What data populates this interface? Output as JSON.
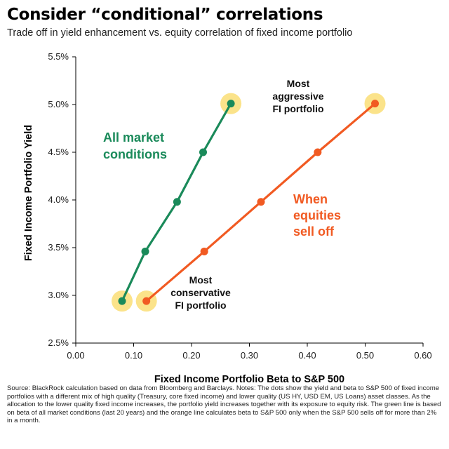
{
  "title": "Consider “conditional” correlations",
  "subtitle": "Trade off in yield enhancement vs. equity correlation of fixed income portfolio",
  "chart_data": {
    "type": "line",
    "title": "Consider “conditional” correlations",
    "subtitle": "Trade off in yield enhancement vs. equity correlation of fixed income portfolio",
    "xlabel": "Fixed Income Portfolio Beta to S&P 500",
    "ylabel": "Fixed Income Portfolio Yield",
    "xlim": [
      0.0,
      0.6
    ],
    "ylim": [
      2.5,
      5.5
    ],
    "x_ticks": [
      "0.00",
      "0.10",
      "0.20",
      "0.30",
      "0.40",
      "0.50",
      "0.60"
    ],
    "y_ticks": [
      "2.5%",
      "3.0%",
      "3.5%",
      "4.0%",
      "4.5%",
      "5.0%",
      "5.5%"
    ],
    "grid": false,
    "series": [
      {
        "name": "All market conditions",
        "color": "#1a8a5a",
        "x": [
          0.08,
          0.12,
          0.175,
          0.22,
          0.268
        ],
        "y": [
          2.94,
          3.46,
          3.98,
          4.5,
          5.01
        ]
      },
      {
        "name": "When equities sell off",
        "color": "#f15a22",
        "x": [
          0.122,
          0.222,
          0.32,
          0.418,
          0.517
        ],
        "y": [
          2.94,
          3.46,
          3.98,
          4.5,
          5.01
        ]
      }
    ],
    "highlight_color": "#fbe38a",
    "annotations": {
      "most_aggressive": [
        "Most",
        "aggressive",
        "FI portfolio"
      ],
      "most_conservative": [
        "Most",
        "conservative",
        "FI portfolio"
      ],
      "all_market": [
        "All market",
        "conditions"
      ],
      "sell_off": [
        "When",
        "equities",
        "sell off"
      ]
    }
  },
  "source": "Source: BlackRock calculation based on data from Bloomberg and Barclays.  Notes: The dots show the yield and beta to S&P 500 of fixed income portfolios with a different mix of high quality (Treasury, core fixed income) and lower quality (US HY, USD EM, US Loans) asset classes. As the allocation to the lower quality fixed income increases, the portfolio yield increases together with its exposure to equity risk. The green line is based on beta of all market conditions (last 20 years) and the orange line calculates beta to S&P 500 only when the S&P 500 sells off for more than 2% in a month."
}
